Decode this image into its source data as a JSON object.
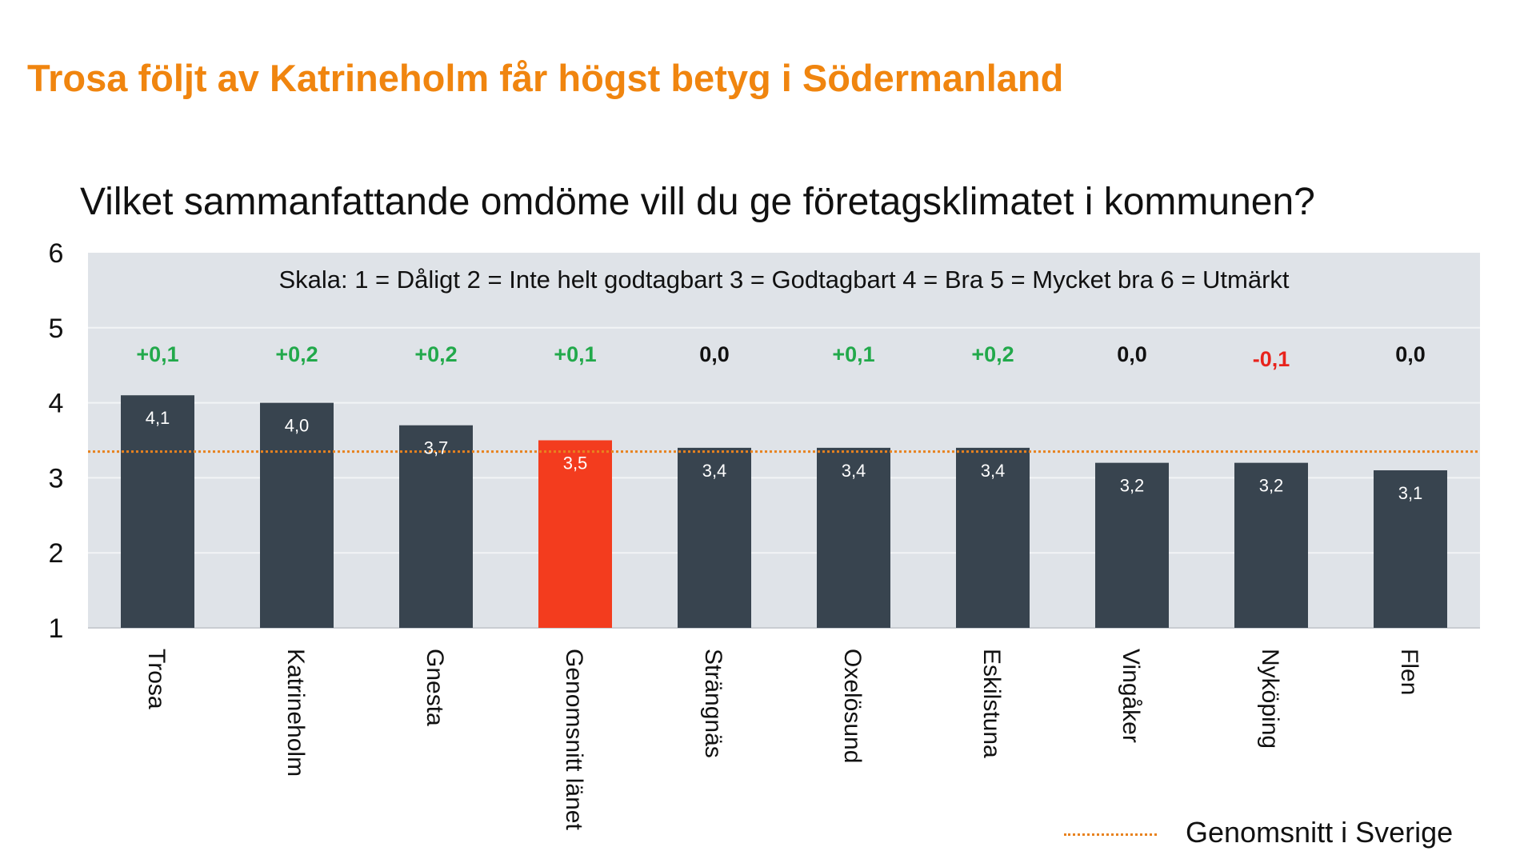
{
  "headline": "Trosa följt av Katrineholm får högst betyg i Södermanland",
  "question": "Vilket sammanfattande omdöme vill du ge företagsklimatet i kommunen?",
  "chart_data": {
    "type": "bar",
    "categories": [
      "Trosa",
      "Katrineholm",
      "Gnesta",
      "Genomsnitt länet",
      "Strängnäs",
      "Oxelösund",
      "Eskilstuna",
      "Vingåker",
      "Nyköping",
      "Flen"
    ],
    "values": [
      4.1,
      4.0,
      3.7,
      3.5,
      3.4,
      3.4,
      3.4,
      3.2,
      3.2,
      3.1
    ],
    "value_labels": [
      "4,1",
      "4,0",
      "3,7",
      "3,5",
      "3,4",
      "3,4",
      "3,4",
      "3,2",
      "3,2",
      "3,1"
    ],
    "changes": [
      "+0,1",
      "+0,2",
      "+0,2",
      "+0,1",
      "0,0",
      "+0,1",
      "+0,2",
      "0,0",
      "-0,1",
      "0,0"
    ],
    "change_values": [
      0.1,
      0.2,
      0.2,
      0.1,
      0.0,
      0.1,
      0.2,
      0.0,
      -0.1,
      0.0
    ],
    "highlight_category": "Genomsnitt länet",
    "scale_note": "Skala: 1 = Dåligt   2 = Inte helt godtagbart   3 = Godtagbart   4 = Bra   5 = Mycket bra   6 = Utmärkt",
    "ylim": [
      1,
      6
    ],
    "yticks": [
      "1",
      "2",
      "3",
      "4",
      "5",
      "6"
    ],
    "reference_line": {
      "name": "Genomsnitt i Sverige",
      "value": 3.35
    },
    "grid": true,
    "legend_position": "bottom-right",
    "colors": {
      "bar": "#38444F",
      "highlight": "#F33C1E",
      "plot_background": "#DFE3E8",
      "gridline": "#F2F4F6",
      "reference_line": "#E8821E",
      "positive_change": "#22A94B",
      "negative_change": "#E8231C",
      "neutral_change": "#111111",
      "headline": "#F0850F"
    }
  }
}
